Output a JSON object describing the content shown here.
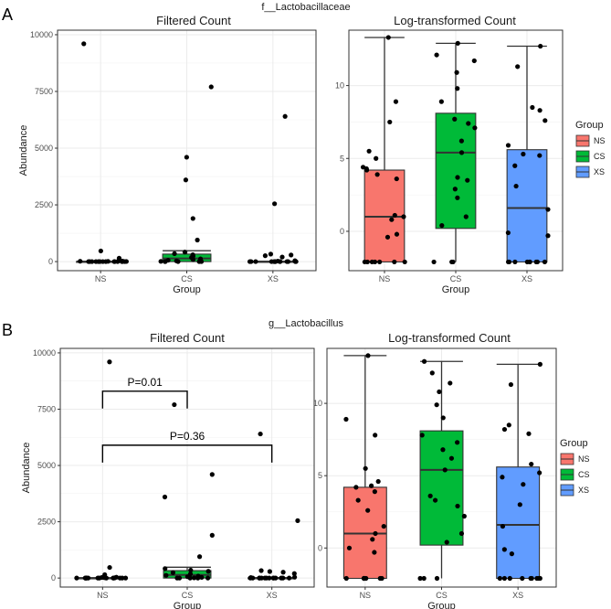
{
  "panel_labels": [
    "A",
    "B"
  ],
  "colors": {
    "NS": "#f8766d",
    "CS": "#00ba38",
    "XS": "#619cff"
  },
  "legend": {
    "title": "Group",
    "items": [
      "NS",
      "CS",
      "XS"
    ]
  },
  "chart_data": [
    {
      "type": "scatter",
      "taxon": "f__Lactobacillaceae",
      "title": "Filtered Count",
      "xlabel": "Group",
      "ylabel": "Abundance",
      "categories": [
        "NS",
        "CS",
        "XS"
      ],
      "ylim": [
        -400,
        10200
      ],
      "yticks": [
        0,
        2500,
        5000,
        7500,
        10000
      ],
      "boxes": [
        {
          "group": "NS",
          "q1": 0,
          "median": 0,
          "q3": 5,
          "lower": 0,
          "upper": 12
        },
        {
          "group": "CS",
          "q1": 0,
          "median": 140,
          "q3": 330,
          "lower": 0,
          "upper": 480
        },
        {
          "group": "XS",
          "q1": 0,
          "median": 0,
          "q3": 6,
          "lower": 0,
          "upper": 14
        }
      ],
      "points": {
        "NS": [
          9600,
          470,
          150,
          40,
          25,
          15,
          10,
          5,
          0,
          0,
          0,
          0,
          0,
          0,
          0,
          0,
          0,
          0,
          0,
          0,
          0,
          0
        ],
        "CS": [
          7700,
          4600,
          3600,
          1900,
          950,
          420,
          350,
          300,
          240,
          180,
          120,
          90,
          60,
          30,
          10,
          0,
          0,
          0,
          0,
          0
        ],
        "XS": [
          6400,
          2550,
          330,
          290,
          260,
          200,
          40,
          20,
          0,
          0,
          0,
          0,
          0,
          0,
          0,
          0,
          0,
          0,
          0,
          0,
          0,
          0
        ]
      },
      "annotations": []
    },
    {
      "type": "scatter",
      "taxon": "f__Lactobacillaceae",
      "title": "Log-transformed Count",
      "xlabel": "Group",
      "ylabel": "",
      "categories": [
        "NS",
        "CS",
        "XS"
      ],
      "ylim": [
        -2.7,
        13.8
      ],
      "yticks": [
        0,
        5,
        10
      ],
      "legend_position": "right",
      "boxes": [
        {
          "group": "NS",
          "q1": -2.1,
          "median": 1.0,
          "q3": 4.2,
          "lower": -2.1,
          "upper": 13.3
        },
        {
          "group": "CS",
          "q1": 0.2,
          "median": 5.4,
          "q3": 8.1,
          "lower": -2.1,
          "upper": 12.9
        },
        {
          "group": "XS",
          "q1": -2.1,
          "median": 1.6,
          "q3": 5.6,
          "lower": -2.1,
          "upper": 12.7
        }
      ],
      "points": {
        "NS": [
          13.3,
          8.9,
          7.5,
          5.5,
          5.0,
          4.4,
          4.3,
          4.2,
          3.9,
          3.6,
          1.1,
          1.0,
          0.8,
          -0.2,
          -0.4,
          -2.1,
          -2.1,
          -2.1,
          -2.1,
          -2.1,
          -2.1,
          -2.1
        ],
        "CS": [
          12.9,
          12.1,
          11.7,
          10.9,
          9.8,
          8.9,
          7.7,
          7.4,
          7.1,
          6.2,
          5.4,
          3.7,
          3.5,
          2.9,
          2.3,
          1.0,
          0.4,
          -2.1,
          -2.1,
          -2.1
        ],
        "XS": [
          12.7,
          11.3,
          8.5,
          8.3,
          7.6,
          5.9,
          5.3,
          5.2,
          4.5,
          3.1,
          1.5,
          -0.1,
          -0.3,
          -2.1,
          -2.1,
          -2.1,
          -2.1,
          -2.1,
          -2.1,
          -2.1,
          -2.1,
          -2.1
        ]
      },
      "annotations": []
    },
    {
      "type": "scatter",
      "taxon": "g__Lactobacillus",
      "title": "Filtered Count",
      "xlabel": "Group",
      "ylabel": "Abundance",
      "categories": [
        "NS",
        "CS",
        "XS"
      ],
      "ylim": [
        -400,
        10200
      ],
      "yticks": [
        0,
        2500,
        5000,
        7500,
        10000
      ],
      "boxes": [
        {
          "group": "NS",
          "q1": 0,
          "median": 0,
          "q3": 5,
          "lower": 0,
          "upper": 12
        },
        {
          "group": "CS",
          "q1": 0,
          "median": 140,
          "q3": 330,
          "lower": 0,
          "upper": 480
        },
        {
          "group": "XS",
          "q1": 0,
          "median": 0,
          "q3": 6,
          "lower": 0,
          "upper": 14
        }
      ],
      "points": {
        "NS": [
          9600,
          470,
          150,
          40,
          25,
          15,
          10,
          5,
          0,
          0,
          0,
          0,
          0,
          0,
          0,
          0,
          0,
          0,
          0,
          0,
          0,
          0
        ],
        "CS": [
          7700,
          4600,
          3600,
          1900,
          950,
          420,
          350,
          300,
          240,
          180,
          120,
          90,
          60,
          30,
          10,
          0,
          0,
          0,
          0,
          0
        ],
        "XS": [
          6400,
          2550,
          330,
          290,
          260,
          200,
          40,
          20,
          0,
          0,
          0,
          0,
          0,
          0,
          0,
          0,
          0,
          0,
          0,
          0,
          0,
          0
        ]
      },
      "annotations": [
        {
          "text": "P=0.01",
          "from": "NS",
          "to": "CS",
          "y": 8300
        },
        {
          "text": "P=0.36",
          "from": "NS",
          "to": "XS",
          "y": 5900
        }
      ]
    },
    {
      "type": "scatter",
      "taxon": "g__Lactobacillus",
      "title": "Log-transformed Count",
      "xlabel": "Group",
      "ylabel": "",
      "categories": [
        "NS",
        "CS",
        "XS"
      ],
      "ylim": [
        -2.7,
        13.8
      ],
      "yticks": [
        0,
        5,
        10
      ],
      "legend_position": "right",
      "boxes": [
        {
          "group": "NS",
          "q1": -2.1,
          "median": 1.0,
          "q3": 4.2,
          "lower": -2.1,
          "upper": 13.3
        },
        {
          "group": "CS",
          "q1": 0.2,
          "median": 5.4,
          "q3": 8.1,
          "lower": -2.1,
          "upper": 12.9
        },
        {
          "group": "XS",
          "q1": -2.1,
          "median": 1.6,
          "q3": 5.6,
          "lower": -2.1,
          "upper": 12.7
        }
      ],
      "points": {
        "NS": [
          13.3,
          8.9,
          7.8,
          5.5,
          4.6,
          4.3,
          4.2,
          3.9,
          3.3,
          2.6,
          1.5,
          1.0,
          0.6,
          0.0,
          -0.3,
          -2.1,
          -2.1,
          -2.1,
          -2.1,
          -2.1,
          -2.1,
          -2.1
        ],
        "CS": [
          12.9,
          12.1,
          11.4,
          10.8,
          9.9,
          9.0,
          7.8,
          7.3,
          6.8,
          6.2,
          5.4,
          3.6,
          3.3,
          2.9,
          2.2,
          1.0,
          0.4,
          -2.1,
          -2.1,
          -2.1
        ],
        "XS": [
          12.7,
          11.3,
          8.5,
          8.2,
          7.9,
          5.8,
          5.2,
          4.9,
          4.4,
          3.0,
          1.5,
          -0.1,
          -0.4,
          -2.1,
          -2.1,
          -2.1,
          -2.1,
          -2.1,
          -2.1,
          -2.1,
          -2.1,
          -2.1
        ]
      },
      "annotations": []
    }
  ]
}
